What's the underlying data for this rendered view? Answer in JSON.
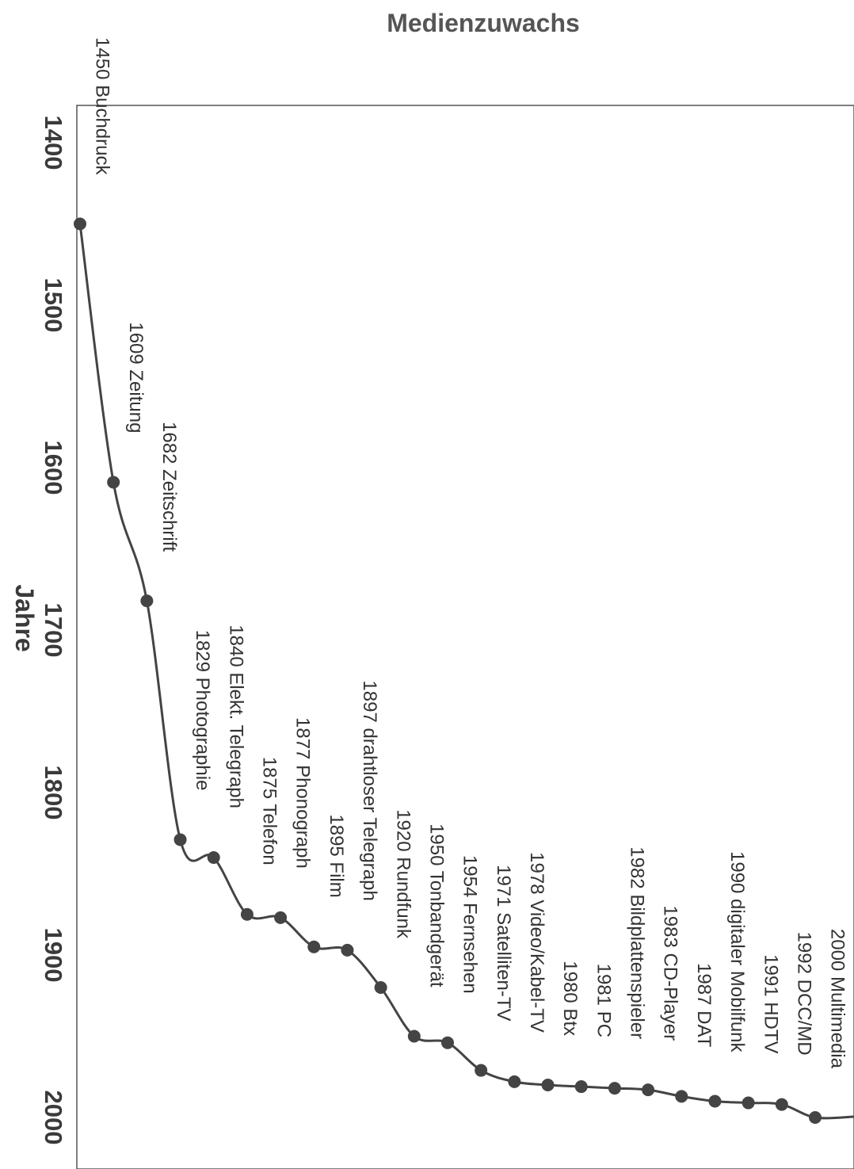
{
  "chart_data": {
    "type": "line",
    "title": "Medienzuwachs",
    "xlabel": "Jahre",
    "ylabel": "",
    "x_range": [
      1400,
      2000
    ],
    "ticks": [
      1400,
      1500,
      1600,
      1700,
      1800,
      1900,
      2000
    ],
    "tick_labels": [
      "1400",
      "1500",
      "1600",
      "1700",
      "1800",
      "1900",
      "2000"
    ],
    "grid": false,
    "legend": "none",
    "orientation": "rotated-90-clockwise",
    "points": [
      {
        "x": 1450,
        "label": "1450 Buchdruck"
      },
      {
        "x": 1609,
        "label": "1609 Zeitung"
      },
      {
        "x": 1682,
        "label": "1682 Zeitschrift"
      },
      {
        "x": 1829,
        "label": "1829 Photographie"
      },
      {
        "x": 1840,
        "label": "1840 Elekt. Telegraph"
      },
      {
        "x": 1875,
        "label": "1875 Telefon"
      },
      {
        "x": 1877,
        "label": "1877 Phonograph"
      },
      {
        "x": 1895,
        "label": "1895 Film"
      },
      {
        "x": 1897,
        "label": "1897 drahtloser Telegraph"
      },
      {
        "x": 1920,
        "label": "1920 Rundfunk"
      },
      {
        "x": 1950,
        "label": "1950 Tonbandgerät"
      },
      {
        "x": 1954,
        "label": "1954 Fernsehen"
      },
      {
        "x": 1971,
        "label": "1971 Satelliten-TV"
      },
      {
        "x": 1978,
        "label": "1978 Video/Kabel-TV"
      },
      {
        "x": 1980,
        "label": "1980 Btx"
      },
      {
        "x": 1981,
        "label": "1981 PC"
      },
      {
        "x": 1982,
        "label": "1982 Bildplattenspieler"
      },
      {
        "x": 1983,
        "label": "1983 CD-Player"
      },
      {
        "x": 1987,
        "label": "1987 DAT"
      },
      {
        "x": 1990,
        "label": "1990 digitaler Mobilfunk"
      },
      {
        "x": 1991,
        "label": "1991 HDTV"
      },
      {
        "x": 1992,
        "label": "1992 DCC/MD"
      },
      {
        "x": 2000,
        "label": "2000 Multimedia"
      }
    ]
  }
}
